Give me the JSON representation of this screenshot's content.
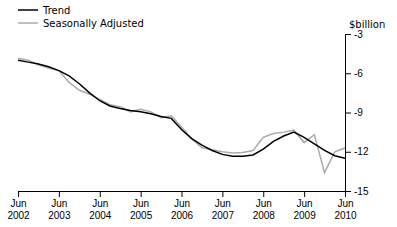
{
  "chart_data": {
    "type": "line",
    "y_label": "$billion",
    "categories": [
      "Jun\n2002",
      null,
      null,
      null,
      "Jun\n2003",
      null,
      null,
      null,
      "Jun\n2004",
      null,
      null,
      null,
      "Jun\n2005",
      null,
      null,
      null,
      "Jun\n2006",
      null,
      null,
      null,
      "Jun\n2007",
      null,
      null,
      null,
      "Jun\n2008",
      null,
      null,
      null,
      "Jun\n2009",
      null,
      null,
      null,
      "Jun\n2010"
    ],
    "series": [
      {
        "name": "Seasonally Adjusted",
        "color": "#aaaaaa",
        "values": [
          -4.85,
          -5.0,
          -5.35,
          -5.6,
          -5.8,
          -6.7,
          -7.3,
          -7.6,
          -8.0,
          -8.4,
          -8.55,
          -8.95,
          -8.75,
          -8.95,
          -9.4,
          -9.25,
          -10.1,
          -11.0,
          -11.7,
          -11.85,
          -12.0,
          -12.1,
          -12.05,
          -11.9,
          -10.9,
          -10.6,
          -10.5,
          -10.35,
          -11.3,
          -10.7,
          -13.6,
          -12.0,
          -11.7
        ]
      },
      {
        "name": "Trend",
        "color": "#000000",
        "values": [
          -5.0,
          -5.15,
          -5.3,
          -5.5,
          -5.8,
          -6.2,
          -6.8,
          -7.5,
          -8.1,
          -8.5,
          -8.7,
          -8.85,
          -8.95,
          -9.1,
          -9.3,
          -9.45,
          -10.3,
          -11.0,
          -11.5,
          -11.9,
          -12.2,
          -12.35,
          -12.35,
          -12.25,
          -11.8,
          -11.2,
          -10.8,
          -10.5,
          -10.9,
          -11.4,
          -11.9,
          -12.3,
          -12.5
        ]
      }
    ],
    "ylim": [
      -15,
      -3
    ],
    "yticks": [
      -15,
      -12,
      -9,
      -6,
      -3
    ],
    "grid": false,
    "legend": "upper left"
  }
}
